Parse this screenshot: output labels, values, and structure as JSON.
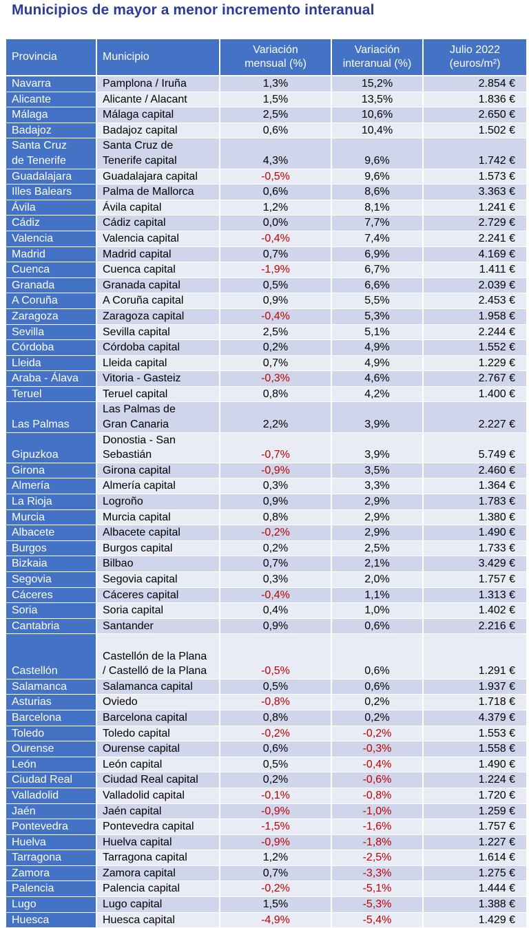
{
  "title": "Municipios de mayor a menor incremento interanual",
  "colors": {
    "header": "#4472c4",
    "row_odd": "#cfd5ea",
    "row_even": "#e9ebf5",
    "negative": "#c00000",
    "title": "#2c3a9a"
  },
  "table": {
    "headers": {
      "provincia": "Provincia",
      "municipio": "Municipio",
      "mensual_1": "Variación",
      "mensual_2": "mensual (%)",
      "interanual_1": "Variación",
      "interanual_2": "interanual (%)",
      "precio_1": "Julio 2022",
      "precio_2": "(euros/m²)"
    },
    "rows": [
      {
        "provincia": "Navarra",
        "municipio": "Pamplona / Iruña",
        "mensual": "1,3%",
        "interanual": "15,2%",
        "precio": "2.854 €"
      },
      {
        "provincia": "Alicante",
        "municipio": "Alicante / Alacant",
        "mensual": "1,5%",
        "interanual": "13,5%",
        "precio": "1.836 €"
      },
      {
        "provincia": "Málaga",
        "municipio": "Málaga capital",
        "mensual": "2,5%",
        "interanual": "10,6%",
        "precio": "2.650 €"
      },
      {
        "provincia": "Badajoz",
        "municipio": "Badajoz capital",
        "mensual": "0,6%",
        "interanual": "10,4%",
        "precio": "1.502 €"
      },
      {
        "provincia": "Santa Cruz de Tenerife",
        "municipio": "Santa Cruz de Tenerife capital",
        "mensual": "4,3%",
        "interanual": "9,6%",
        "precio": "1.742 €"
      },
      {
        "provincia": "Guadalajara",
        "municipio": "Guadalajara capital",
        "mensual": "-0,5%",
        "interanual": "9,6%",
        "precio": "1.573 €"
      },
      {
        "provincia": "Illes Balears",
        "municipio": "Palma de Mallorca",
        "mensual": "0,6%",
        "interanual": "8,6%",
        "precio": "3.363 €"
      },
      {
        "provincia": "Ávila",
        "municipio": "Ávila capital",
        "mensual": "1,2%",
        "interanual": "8,1%",
        "precio": "1.241 €"
      },
      {
        "provincia": "Cádiz",
        "municipio": "Cádiz capital",
        "mensual": "0,0%",
        "interanual": "7,7%",
        "precio": "2.729 €"
      },
      {
        "provincia": "Valencia",
        "municipio": "Valencia capital",
        "mensual": "-0,4%",
        "interanual": "7,4%",
        "precio": "2.241 €"
      },
      {
        "provincia": "Madrid",
        "municipio": "Madrid capital",
        "mensual": "0,7%",
        "interanual": "6,9%",
        "precio": "4.169 €"
      },
      {
        "provincia": "Cuenca",
        "municipio": "Cuenca capital",
        "mensual": "-1,9%",
        "interanual": "6,7%",
        "precio": "1.411 €"
      },
      {
        "provincia": "Granada",
        "municipio": "Granada capital",
        "mensual": "0,5%",
        "interanual": "6,6%",
        "precio": "2.039 €"
      },
      {
        "provincia": "A Coruña",
        "municipio": "A Coruña capital",
        "mensual": "0,9%",
        "interanual": "5,5%",
        "precio": "2.453 €"
      },
      {
        "provincia": "Zaragoza",
        "municipio": "Zaragoza capital",
        "mensual": "-0,4%",
        "interanual": "5,3%",
        "precio": "1.958 €"
      },
      {
        "provincia": "Sevilla",
        "municipio": "Sevilla capital",
        "mensual": "2,5%",
        "interanual": "5,1%",
        "precio": "2.244 €"
      },
      {
        "provincia": "Córdoba",
        "municipio": "Córdoba capital",
        "mensual": "0,2%",
        "interanual": "4,9%",
        "precio": "1.552 €"
      },
      {
        "provincia": "Lleida",
        "municipio": "Lleida capital",
        "mensual": "0,7%",
        "interanual": "4,9%",
        "precio": "1.229 €"
      },
      {
        "provincia": "Araba - Álava",
        "municipio": "Vitoria - Gasteiz",
        "mensual": "-0,3%",
        "interanual": "4,6%",
        "precio": "2.767 €"
      },
      {
        "provincia": "Teruel",
        "municipio": "Teruel capital",
        "mensual": "0,8%",
        "interanual": "4,2%",
        "precio": "1.400 €"
      },
      {
        "provincia": "Las Palmas",
        "municipio": "Las Palmas de Gran Canaria",
        "mensual": "2,2%",
        "interanual": "3,9%",
        "precio": "2.227 €"
      },
      {
        "provincia": "Gipuzkoa",
        "municipio": "Donostia - San Sebastián",
        "mensual": "-0,7%",
        "interanual": "3,9%",
        "precio": "5.749 €"
      },
      {
        "provincia": "Girona",
        "municipio": "Girona capital",
        "mensual": "-0,9%",
        "interanual": "3,5%",
        "precio": "2.460 €"
      },
      {
        "provincia": "Almería",
        "municipio": "Almería capital",
        "mensual": "0,3%",
        "interanual": "3,3%",
        "precio": "1.364 €"
      },
      {
        "provincia": "La Rioja",
        "municipio": "Logroño",
        "mensual": "0,9%",
        "interanual": "2,9%",
        "precio": "1.783 €"
      },
      {
        "provincia": "Murcia",
        "municipio": "Murcia capital",
        "mensual": "0,8%",
        "interanual": "2,9%",
        "precio": "1.380 €"
      },
      {
        "provincia": "Albacete",
        "municipio": "Albacete capital",
        "mensual": "-0,2%",
        "interanual": "2,9%",
        "precio": "1.490 €"
      },
      {
        "provincia": "Burgos",
        "municipio": "Burgos capital",
        "mensual": "0,2%",
        "interanual": "2,5%",
        "precio": "1.733 €"
      },
      {
        "provincia": "Bizkaia",
        "municipio": "Bilbao",
        "mensual": "0,7%",
        "interanual": "2,1%",
        "precio": "3.429 €"
      },
      {
        "provincia": "Segovia",
        "municipio": "Segovia capital",
        "mensual": "0,3%",
        "interanual": "2,0%",
        "precio": "1.757 €"
      },
      {
        "provincia": "Cáceres",
        "municipio": "Cáceres capital",
        "mensual": "-0,4%",
        "interanual": "1,1%",
        "precio": "1.313 €"
      },
      {
        "provincia": "Soria",
        "municipio": "Soria capital",
        "mensual": "0,4%",
        "interanual": "1,0%",
        "precio": "1.402 €"
      },
      {
        "provincia": "Cantabria",
        "municipio": "Santander",
        "mensual": "0,9%",
        "interanual": "0,6%",
        "precio": "2.216 €"
      },
      {
        "provincia": "Castellón",
        "municipio": "Castellón de la Plana / Castelló de la Plana",
        "mensual": "-0,5%",
        "interanual": "0,6%",
        "precio": "1.291 €"
      },
      {
        "provincia": "Salamanca",
        "municipio": "Salamanca capital",
        "mensual": "0,5%",
        "interanual": "0,6%",
        "precio": "1.937 €"
      },
      {
        "provincia": "Asturias",
        "municipio": "Oviedo",
        "mensual": "-0,8%",
        "interanual": "0,2%",
        "precio": "1.718 €"
      },
      {
        "provincia": "Barcelona",
        "municipio": "Barcelona capital",
        "mensual": "0,8%",
        "interanual": "0,2%",
        "precio": "4.379 €"
      },
      {
        "provincia": "Toledo",
        "municipio": "Toledo capital",
        "mensual": "-0,2%",
        "interanual": "-0,2%",
        "precio": "1.553 €"
      },
      {
        "provincia": "Ourense",
        "municipio": "Ourense capital",
        "mensual": "0,6%",
        "interanual": "-0,3%",
        "precio": "1.558 €"
      },
      {
        "provincia": "León",
        "municipio": "León capital",
        "mensual": "0,5%",
        "interanual": "-0,4%",
        "precio": "1.490 €"
      },
      {
        "provincia": "Ciudad Real",
        "municipio": "Ciudad Real capital",
        "mensual": "0,2%",
        "interanual": "-0,6%",
        "precio": "1.224 €"
      },
      {
        "provincia": "Valladolid",
        "municipio": "Valladolid capital",
        "mensual": "-0,1%",
        "interanual": "-0,8%",
        "precio": "1.720 €"
      },
      {
        "provincia": "Jaén",
        "municipio": "Jaén capital",
        "mensual": "-0,9%",
        "interanual": "-1,0%",
        "precio": "1.259 €"
      },
      {
        "provincia": "Pontevedra",
        "municipio": "Pontevedra capital",
        "mensual": "-1,5%",
        "interanual": "-1,6%",
        "precio": "1.757 €"
      },
      {
        "provincia": "Huelva",
        "municipio": "Huelva capital",
        "mensual": "-0,9%",
        "interanual": "-1,8%",
        "precio": "1.227 €"
      },
      {
        "provincia": "Tarragona",
        "municipio": "Tarragona capital",
        "mensual": "1,2%",
        "interanual": "-2,5%",
        "precio": "1.614 €"
      },
      {
        "provincia": "Zamora",
        "municipio": "Zamora capital",
        "mensual": "0,7%",
        "interanual": "-3,3%",
        "precio": "1.275 €"
      },
      {
        "provincia": "Palencia",
        "municipio": "Palencia capital",
        "mensual": "-0,2%",
        "interanual": "-5,1%",
        "precio": "1.444 €"
      },
      {
        "provincia": "Lugo",
        "municipio": "Lugo capital",
        "mensual": "1,5%",
        "interanual": "-5,3%",
        "precio": "1.388 €"
      },
      {
        "provincia": "Huesca",
        "municipio": "Huesca capital",
        "mensual": "-4,9%",
        "interanual": "-5,4%",
        "precio": "1.429 €"
      }
    ]
  }
}
